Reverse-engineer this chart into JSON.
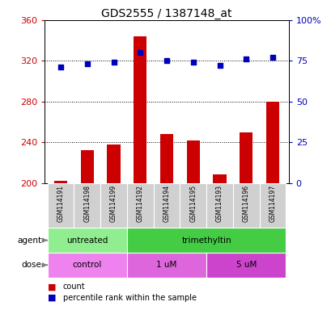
{
  "title": "GDS2555 / 1387148_at",
  "samples": [
    "GSM114191",
    "GSM114198",
    "GSM114199",
    "GSM114192",
    "GSM114194",
    "GSM114195",
    "GSM114193",
    "GSM114196",
    "GSM114197"
  ],
  "count_values": [
    202,
    232,
    238,
    344,
    248,
    242,
    208,
    250,
    280
  ],
  "percentile_values": [
    71,
    73,
    74,
    80,
    75,
    74,
    72,
    76,
    77
  ],
  "agent_groups": [
    {
      "label": "untreated",
      "start": 0,
      "end": 3,
      "color": "#90EE90"
    },
    {
      "label": "trimethyltin",
      "start": 3,
      "end": 9,
      "color": "#44CC44"
    }
  ],
  "dose_groups": [
    {
      "label": "control",
      "start": 0,
      "end": 3,
      "color": "#EE82EE"
    },
    {
      "label": "1 uM",
      "start": 3,
      "end": 6,
      "color": "#DD66DD"
    },
    {
      "label": "5 uM",
      "start": 6,
      "end": 9,
      "color": "#CC44CC"
    }
  ],
  "left_ylim": [
    200,
    360
  ],
  "left_yticks": [
    200,
    240,
    280,
    320,
    360
  ],
  "right_ylim": [
    0,
    100
  ],
  "right_yticks": [
    0,
    25,
    50,
    75,
    100
  ],
  "right_yticklabels": [
    "0",
    "25",
    "50",
    "75",
    "100%"
  ],
  "bar_color": "#CC0000",
  "dot_color": "#0000BB",
  "left_tick_color": "#CC0000",
  "right_tick_color": "#0000BB",
  "grid_color": "black",
  "background_color": "#ffffff",
  "plot_bg_color": "#ffffff",
  "legend_count_color": "#CC0000",
  "legend_dot_color": "#0000BB",
  "sample_bg_color": "#d0d0d0"
}
